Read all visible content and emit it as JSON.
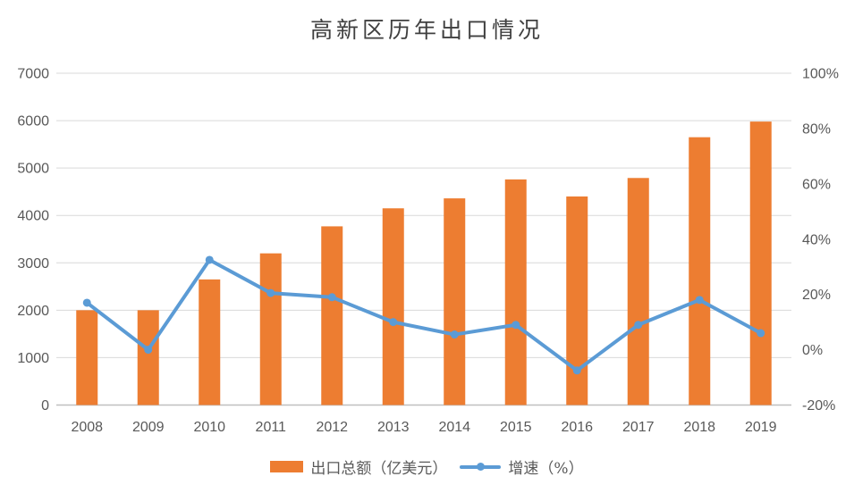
{
  "title": "高新区历年出口情况",
  "legend": {
    "series1": "出口总额（亿美元）",
    "series2": "增速（%）"
  },
  "colors": {
    "bar": "#ED7D31",
    "line": "#5B9BD5",
    "gridline": "#D9D9D9",
    "axis_line": "#BFBFBF",
    "tick_text": "#595959",
    "title_text": "#404040"
  },
  "chart_data": {
    "type": "bar",
    "subtype": "combo bar+line, dual axis",
    "title": "高新区历年出口情况",
    "categories": [
      "2008",
      "2009",
      "2010",
      "2011",
      "2012",
      "2013",
      "2014",
      "2015",
      "2016",
      "2017",
      "2018",
      "2019"
    ],
    "series": [
      {
        "name": "出口总额（亿美元）",
        "type": "bar",
        "axis": "left",
        "color": "#ED7D31",
        "values": [
          2000,
          2000,
          2650,
          3200,
          3770,
          4150,
          4360,
          4760,
          4400,
          4790,
          5650,
          5980
        ]
      },
      {
        "name": "增速（%）",
        "type": "line",
        "axis": "right",
        "color": "#5B9BD5",
        "values": [
          17,
          0,
          32.5,
          20.5,
          19,
          10,
          5.5,
          9,
          -7.5,
          9,
          18,
          6
        ]
      }
    ],
    "left_axis": {
      "min": 0,
      "max": 7000,
      "step": 1000,
      "tick_labels": [
        "0",
        "1000",
        "2000",
        "3000",
        "4000",
        "5000",
        "6000",
        "7000"
      ]
    },
    "right_axis": {
      "min": -20,
      "max": 100,
      "step": 20,
      "tick_labels": [
        "-20%",
        "0%",
        "20%",
        "40%",
        "60%",
        "80%",
        "100%"
      ]
    },
    "xlabel": "",
    "ylabel": "",
    "grid": "horizontal gridlines at left-axis steps",
    "legend_position": "bottom"
  }
}
